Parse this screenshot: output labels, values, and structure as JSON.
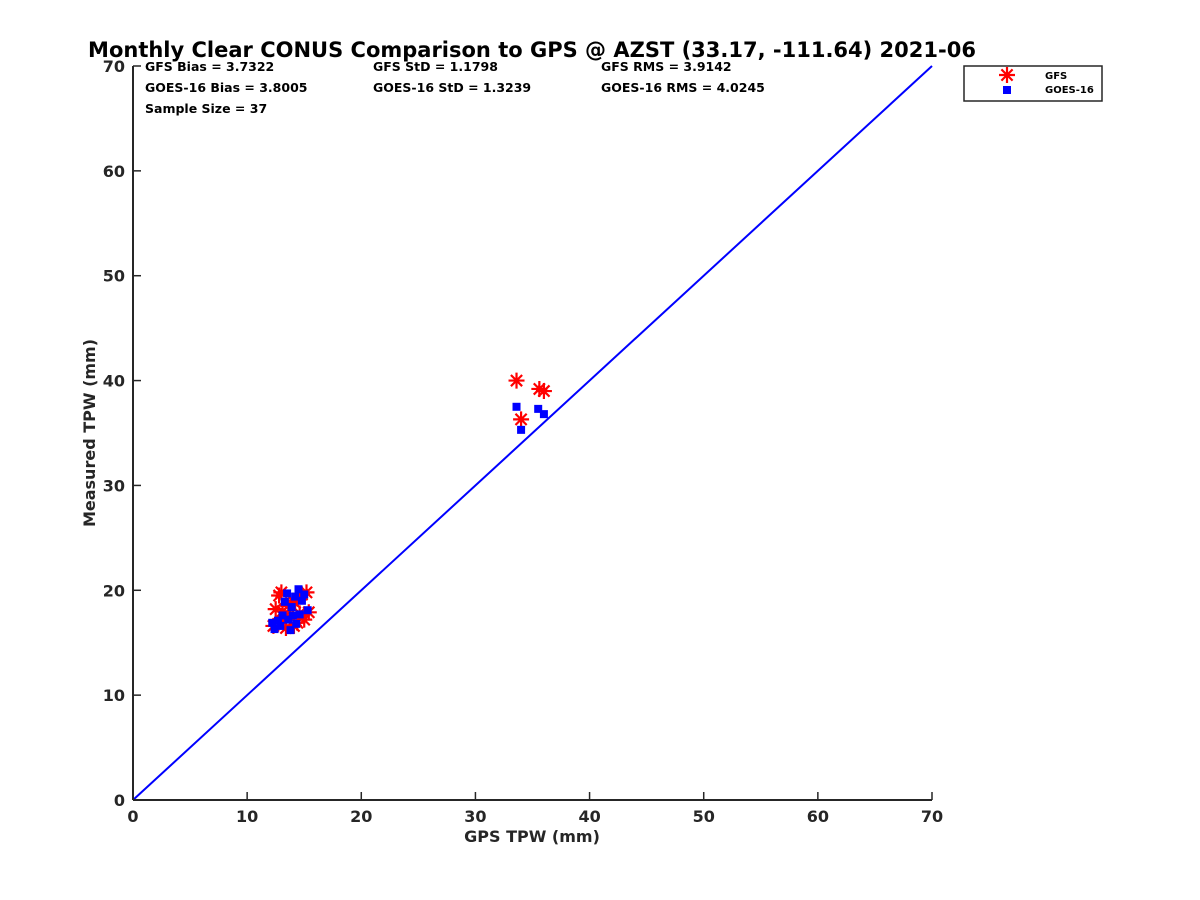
{
  "chart_data": {
    "type": "scatter",
    "title": "Monthly Clear CONUS Comparison to GPS @ AZST (33.17, -111.64) 2021-06",
    "xlabel": "GPS TPW (mm)",
    "ylabel": "Measured TPW (mm)",
    "xlim": [
      0,
      70
    ],
    "ylim": [
      0,
      70
    ],
    "xticks": [
      "0",
      "10",
      "20",
      "30",
      "40",
      "50",
      "60",
      "70"
    ],
    "yticks": [
      "0",
      "10",
      "20",
      "30",
      "40",
      "50",
      "60",
      "70"
    ],
    "grid": false,
    "legend_position": "top-right",
    "stats": [
      [
        "GFS Bias = 3.7322",
        "GFS StD = 1.1798",
        "GFS RMS = 3.9142"
      ],
      [
        "GOES-16 Bias = 3.8005",
        "GOES-16 StD = 1.3239",
        "GOES-16 RMS = 4.0245"
      ],
      [
        "Sample Size = 37"
      ]
    ],
    "reference_line": {
      "x": [
        0,
        70
      ],
      "y": [
        0,
        70
      ],
      "color": "#0000ff"
    },
    "series": [
      {
        "name": "GFS",
        "marker": "asterisk",
        "color": "#ff0000",
        "points": [
          [
            12.3,
            16.6
          ],
          [
            12.5,
            18.2
          ],
          [
            12.8,
            19.5
          ],
          [
            13.0,
            19.8
          ],
          [
            13.2,
            17.0
          ],
          [
            13.4,
            16.4
          ],
          [
            13.6,
            18.5
          ],
          [
            13.8,
            17.4
          ],
          [
            14.0,
            19.0
          ],
          [
            14.2,
            18.8
          ],
          [
            14.4,
            16.9
          ],
          [
            14.6,
            17.8
          ],
          [
            14.8,
            19.6
          ],
          [
            15.0,
            17.2
          ],
          [
            15.2,
            19.8
          ],
          [
            15.4,
            17.9
          ],
          [
            13.1,
            18.0
          ],
          [
            14.1,
            16.6
          ],
          [
            33.6,
            40.0
          ],
          [
            34.0,
            36.3
          ],
          [
            35.6,
            39.2
          ],
          [
            36.0,
            39.0
          ]
        ]
      },
      {
        "name": "GOES-16",
        "marker": "square",
        "color": "#0000ff",
        "points": [
          [
            12.2,
            16.9
          ],
          [
            12.4,
            16.3
          ],
          [
            12.9,
            16.6
          ],
          [
            13.1,
            17.6
          ],
          [
            13.3,
            18.9
          ],
          [
            13.5,
            19.7
          ],
          [
            13.6,
            17.2
          ],
          [
            13.8,
            16.2
          ],
          [
            14.0,
            17.6
          ],
          [
            14.2,
            19.4
          ],
          [
            14.5,
            20.1
          ],
          [
            14.6,
            17.7
          ],
          [
            14.8,
            19.0
          ],
          [
            15.0,
            19.6
          ],
          [
            15.3,
            18.1
          ],
          [
            13.9,
            18.4
          ],
          [
            14.3,
            16.8
          ],
          [
            12.7,
            17.1
          ],
          [
            33.6,
            37.5
          ],
          [
            34.0,
            35.3
          ],
          [
            35.5,
            37.3
          ],
          [
            36.0,
            36.8
          ]
        ]
      }
    ]
  }
}
